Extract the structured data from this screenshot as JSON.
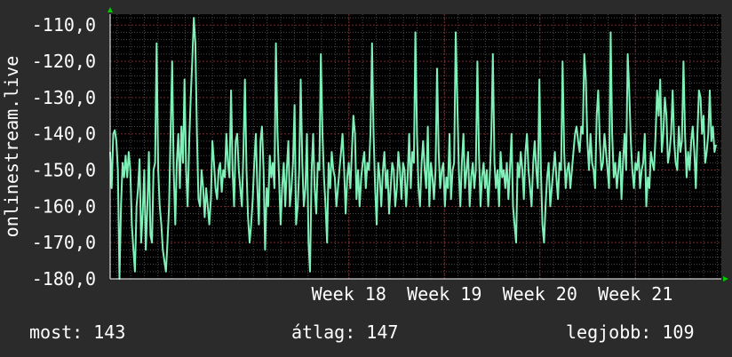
{
  "footer": {
    "now_label": "most:",
    "now_value": "143",
    "avg_label": "átlag:",
    "avg_value": "147",
    "best_label": "legjobb:",
    "best_value": "109"
  },
  "colors": {
    "background": "#2b2b2b",
    "plot_background": "#000000",
    "line": "#7ef0b8",
    "grid_major": "#7a2a2a",
    "grid_minor": "#4a4a4a",
    "axis_arrow": "#00cc00"
  },
  "chart_data": {
    "type": "line",
    "title": "",
    "ylabel": "onlinestream.live",
    "xlabel": "",
    "ylim": [
      -180,
      -107
    ],
    "yticks": [
      -110,
      -120,
      -130,
      -140,
      -150,
      -160,
      -170,
      -180
    ],
    "ytick_labels": [
      "-110,0",
      "-120,0",
      "-130,0",
      "-140,0",
      "-150,0",
      "-160,0",
      "-170,0",
      "-180,0"
    ],
    "x_range": [
      15.5,
      21.9
    ],
    "xticks": [
      18,
      19,
      20,
      21
    ],
    "xtick_labels": [
      "Week 18",
      "Week 19",
      "Week 20",
      "Week 21"
    ],
    "grid": true,
    "series": [
      {
        "values": [
          -145,
          -155,
          -140,
          -139,
          -142,
          -150,
          -180,
          -160,
          -148,
          -152,
          -146,
          -152,
          -145,
          -150,
          -165,
          -172,
          -178,
          -160,
          -155,
          -147,
          -170,
          -162,
          -150,
          -172,
          -160,
          -145,
          -168,
          -170,
          -150,
          -148,
          -115,
          -150,
          -160,
          -165,
          -172,
          -175,
          -178,
          -170,
          -160,
          -140,
          -120,
          -150,
          -165,
          -148,
          -140,
          -155,
          -138,
          -148,
          -125,
          -150,
          -160,
          -142,
          -130,
          -120,
          -108,
          -115,
          -140,
          -158,
          -160,
          -150,
          -155,
          -163,
          -155,
          -160,
          -165,
          -158,
          -142,
          -148,
          -155,
          -158,
          -150,
          -148,
          -156,
          -150,
          -152,
          -140,
          -148,
          -152,
          -128,
          -150,
          -160,
          -142,
          -140,
          -150,
          -155,
          -160,
          -145,
          -125,
          -150,
          -163,
          -170,
          -165,
          -158,
          -148,
          -140,
          -155,
          -165,
          -142,
          -138,
          -150,
          -172,
          -155,
          -160,
          -146,
          -152,
          -148,
          -155,
          -115,
          -140,
          -152,
          -165,
          -155,
          -148,
          -160,
          -150,
          -142,
          -160,
          -155,
          -148,
          -132,
          -165,
          -160,
          -150,
          -125,
          -148,
          -160,
          -155,
          -140,
          -170,
          -178,
          -150,
          -140,
          -155,
          -162,
          -148,
          -150,
          -118,
          -140,
          -152,
          -160,
          -170,
          -148,
          -155,
          -145,
          -150,
          -152,
          -160,
          -155,
          -150,
          -145,
          -140,
          -150,
          -162,
          -152,
          -148,
          -155,
          -145,
          -135,
          -140,
          -158,
          -150,
          -160,
          -152,
          -148,
          -145,
          -155,
          -148,
          -150,
          -140,
          -115,
          -140,
          -155,
          -165,
          -148,
          -152,
          -160,
          -150,
          -145,
          -155,
          -150,
          -162,
          -155,
          -148,
          -150,
          -160,
          -155,
          -145,
          -150,
          -158,
          -148,
          -150,
          -160,
          -152,
          -140,
          -155,
          -145,
          -148,
          -112,
          -140,
          -155,
          -160,
          -148,
          -142,
          -150,
          -155,
          -138,
          -160,
          -148,
          -152,
          -158,
          -150,
          -122,
          -145,
          -155,
          -150,
          -148,
          -160,
          -152,
          -155,
          -140,
          -158,
          -150,
          -148,
          -112,
          -130,
          -150,
          -160,
          -148,
          -140,
          -155,
          -150,
          -145,
          -160,
          -152,
          -148,
          -155,
          -150,
          -120,
          -145,
          -160,
          -152,
          -148,
          -155,
          -150,
          -160,
          -152,
          -140,
          -118,
          -148,
          -155,
          -150,
          -160,
          -145,
          -152,
          -150,
          -155,
          -148,
          -158,
          -150,
          -140,
          -160,
          -165,
          -170,
          -148,
          -152,
          -145,
          -150,
          -158,
          -145,
          -140,
          -150,
          -155,
          -160,
          -148,
          -142,
          -150,
          -155,
          -125,
          -150,
          -165,
          -170,
          -160,
          -152,
          -148,
          -160,
          -155,
          -150,
          -145,
          -152,
          -158,
          -148,
          -150,
          -120,
          -145,
          -155,
          -150,
          -148,
          -155,
          -150,
          -145,
          -140,
          -138,
          -142,
          -145,
          -138,
          -140,
          -118,
          -125,
          -142,
          -150,
          -140,
          -148,
          -150,
          -155,
          -135,
          -128,
          -142,
          -150,
          -148,
          -140,
          -145,
          -150,
          -155,
          -112,
          -140,
          -152,
          -148,
          -155,
          -150,
          -145,
          -158,
          -148,
          -140,
          -150,
          -118,
          -128,
          -142,
          -150,
          -155,
          -148,
          -150,
          -145,
          -155,
          -150,
          -148,
          -140,
          -160,
          -152,
          -155,
          -145,
          -148,
          -150,
          -140,
          -128,
          -135,
          -125,
          -145,
          -140,
          -130,
          -135,
          -148,
          -145,
          -140,
          -128,
          -142,
          -148,
          -150,
          -138,
          -145,
          -142,
          -120,
          -140,
          -152,
          -145,
          -150,
          -142,
          -138,
          -145,
          -155,
          -140,
          -128,
          -130,
          -140,
          -135,
          -148,
          -145,
          -140,
          -128,
          -142,
          -138,
          -145,
          -143
        ]
      }
    ]
  }
}
